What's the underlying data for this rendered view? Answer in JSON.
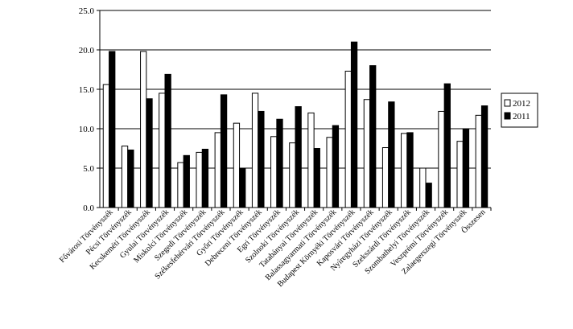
{
  "chart_data": {
    "type": "bar",
    "title": "",
    "xlabel": "",
    "ylabel": "",
    "ylim": [
      0,
      25
    ],
    "yticks": [
      "0.0",
      "5.0",
      "10.0",
      "15.0",
      "20.0",
      "25.0"
    ],
    "grid": "horizontal",
    "legend_position": "right",
    "categories": [
      "Fővárosi Törvényszék",
      "Pécsi Törvényszék",
      "Kecskeméti Törvényszék",
      "Gyulai Törvényszék",
      "Miskolci Törvényszék",
      "Szegedi Törvényszék",
      "Székesfehérvári Törvényszék",
      "Győri Törvényszék",
      "Debreceni Törvényszék",
      "Egri Törvényszék",
      "Szolnoki Törvényszék",
      "Tatabányai Törvényszék",
      "Balassagyarmati Törvényszék",
      "Budapest Környéki Törvényszék",
      "Kaposvári Törvényszék",
      "Nyíregyházi Törvényszék",
      "Szekszárdi Törvényszék",
      "Szombathelyi Törvényszék",
      "Veszprémi Törvényszék",
      "Zalaegerszegi Törvényszék",
      "Összesen"
    ],
    "series": [
      {
        "name": "2012",
        "color": "#ffffff",
        "values": [
          15.6,
          7.8,
          19.8,
          14.5,
          5.7,
          7.0,
          9.5,
          10.7,
          14.5,
          9.0,
          8.2,
          12.0,
          8.9,
          17.3,
          13.7,
          7.6,
          9.4,
          5.0,
          12.2,
          8.4,
          11.7
        ]
      },
      {
        "name": "2011",
        "color": "#000000",
        "values": [
          19.8,
          7.3,
          13.8,
          16.9,
          6.6,
          7.4,
          14.3,
          5.0,
          12.2,
          11.2,
          12.8,
          7.5,
          10.4,
          21.0,
          18.0,
          13.4,
          9.5,
          3.1,
          15.7,
          10.0,
          12.9
        ]
      }
    ]
  }
}
